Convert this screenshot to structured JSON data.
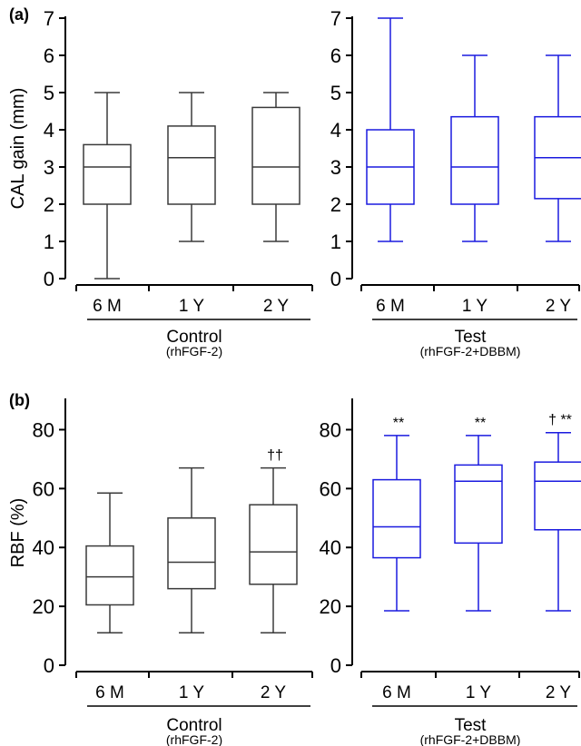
{
  "figure": {
    "colors": {
      "control": "#3a3a3a",
      "test": "#1a1adf",
      "axis": "#000000"
    }
  },
  "chart_data": [
    {
      "type": "box",
      "panel_label": "(a)",
      "group": "Control",
      "group_sublabel": "(rhFGF-2)",
      "ylabel": "CAL gain (mm)",
      "ylim": [
        0,
        7
      ],
      "yticks": [
        0,
        1,
        2,
        3,
        4,
        5,
        6,
        7
      ],
      "categories": [
        "6 M",
        "1 Y",
        "2 Y"
      ],
      "boxes": [
        {
          "min": 0,
          "q1": 2,
          "median": 3,
          "q3": 3.6,
          "max": 5
        },
        {
          "min": 1,
          "q1": 2,
          "median": 3.25,
          "q3": 4.1,
          "max": 5
        },
        {
          "min": 1,
          "q1": 2,
          "median": 3,
          "q3": 4.6,
          "max": 5
        }
      ],
      "annotations": [
        "",
        "",
        ""
      ],
      "color": "#3a3a3a"
    },
    {
      "type": "box",
      "panel_label": "",
      "group": "Test",
      "group_sublabel": "(rhFGF-2+DBBM)",
      "ylabel": "",
      "ylim": [
        0,
        7
      ],
      "yticks": [
        0,
        1,
        2,
        3,
        4,
        5,
        6,
        7
      ],
      "categories": [
        "6 M",
        "1 Y",
        "2 Y"
      ],
      "boxes": [
        {
          "min": 1,
          "q1": 2,
          "median": 3,
          "q3": 4,
          "max": 7
        },
        {
          "min": 1,
          "q1": 2,
          "median": 3,
          "q3": 4.35,
          "max": 6
        },
        {
          "min": 1,
          "q1": 2.15,
          "median": 3.25,
          "q3": 4.35,
          "max": 6
        }
      ],
      "annotations": [
        "",
        "",
        ""
      ],
      "color": "#1a1adf"
    },
    {
      "type": "box",
      "panel_label": "(b)",
      "group": "Control",
      "group_sublabel": "(rhFGF-2)",
      "ylabel": "RBF (%)",
      "ylim": [
        0,
        90
      ],
      "yticks": [
        0,
        20,
        40,
        60,
        80
      ],
      "categories": [
        "6 M",
        "1 Y",
        "2 Y"
      ],
      "boxes": [
        {
          "min": 11,
          "q1": 20.5,
          "median": 30,
          "q3": 40.5,
          "max": 58.5
        },
        {
          "min": 11,
          "q1": 26,
          "median": 35,
          "q3": 50,
          "max": 67
        },
        {
          "min": 11,
          "q1": 27.5,
          "median": 38.5,
          "q3": 54.5,
          "max": 67
        }
      ],
      "annotations": [
        "",
        "",
        "††"
      ],
      "color": "#3a3a3a"
    },
    {
      "type": "box",
      "panel_label": "",
      "group": "Test",
      "group_sublabel": "(rhFGF-2+DBBM)",
      "ylabel": "",
      "ylim": [
        0,
        90
      ],
      "yticks": [
        0,
        20,
        40,
        60,
        80
      ],
      "categories": [
        "6 M",
        "1 Y",
        "2 Y"
      ],
      "boxes": [
        {
          "min": 18.5,
          "q1": 36.5,
          "median": 47,
          "q3": 63,
          "max": 78
        },
        {
          "min": 18.5,
          "q1": 41.5,
          "median": 62.5,
          "q3": 68,
          "max": 78
        },
        {
          "min": 18.5,
          "q1": 46,
          "median": 62.5,
          "q3": 69,
          "max": 79
        }
      ],
      "annotations": [
        "**",
        "**",
        "† **"
      ],
      "color": "#1a1adf"
    }
  ]
}
